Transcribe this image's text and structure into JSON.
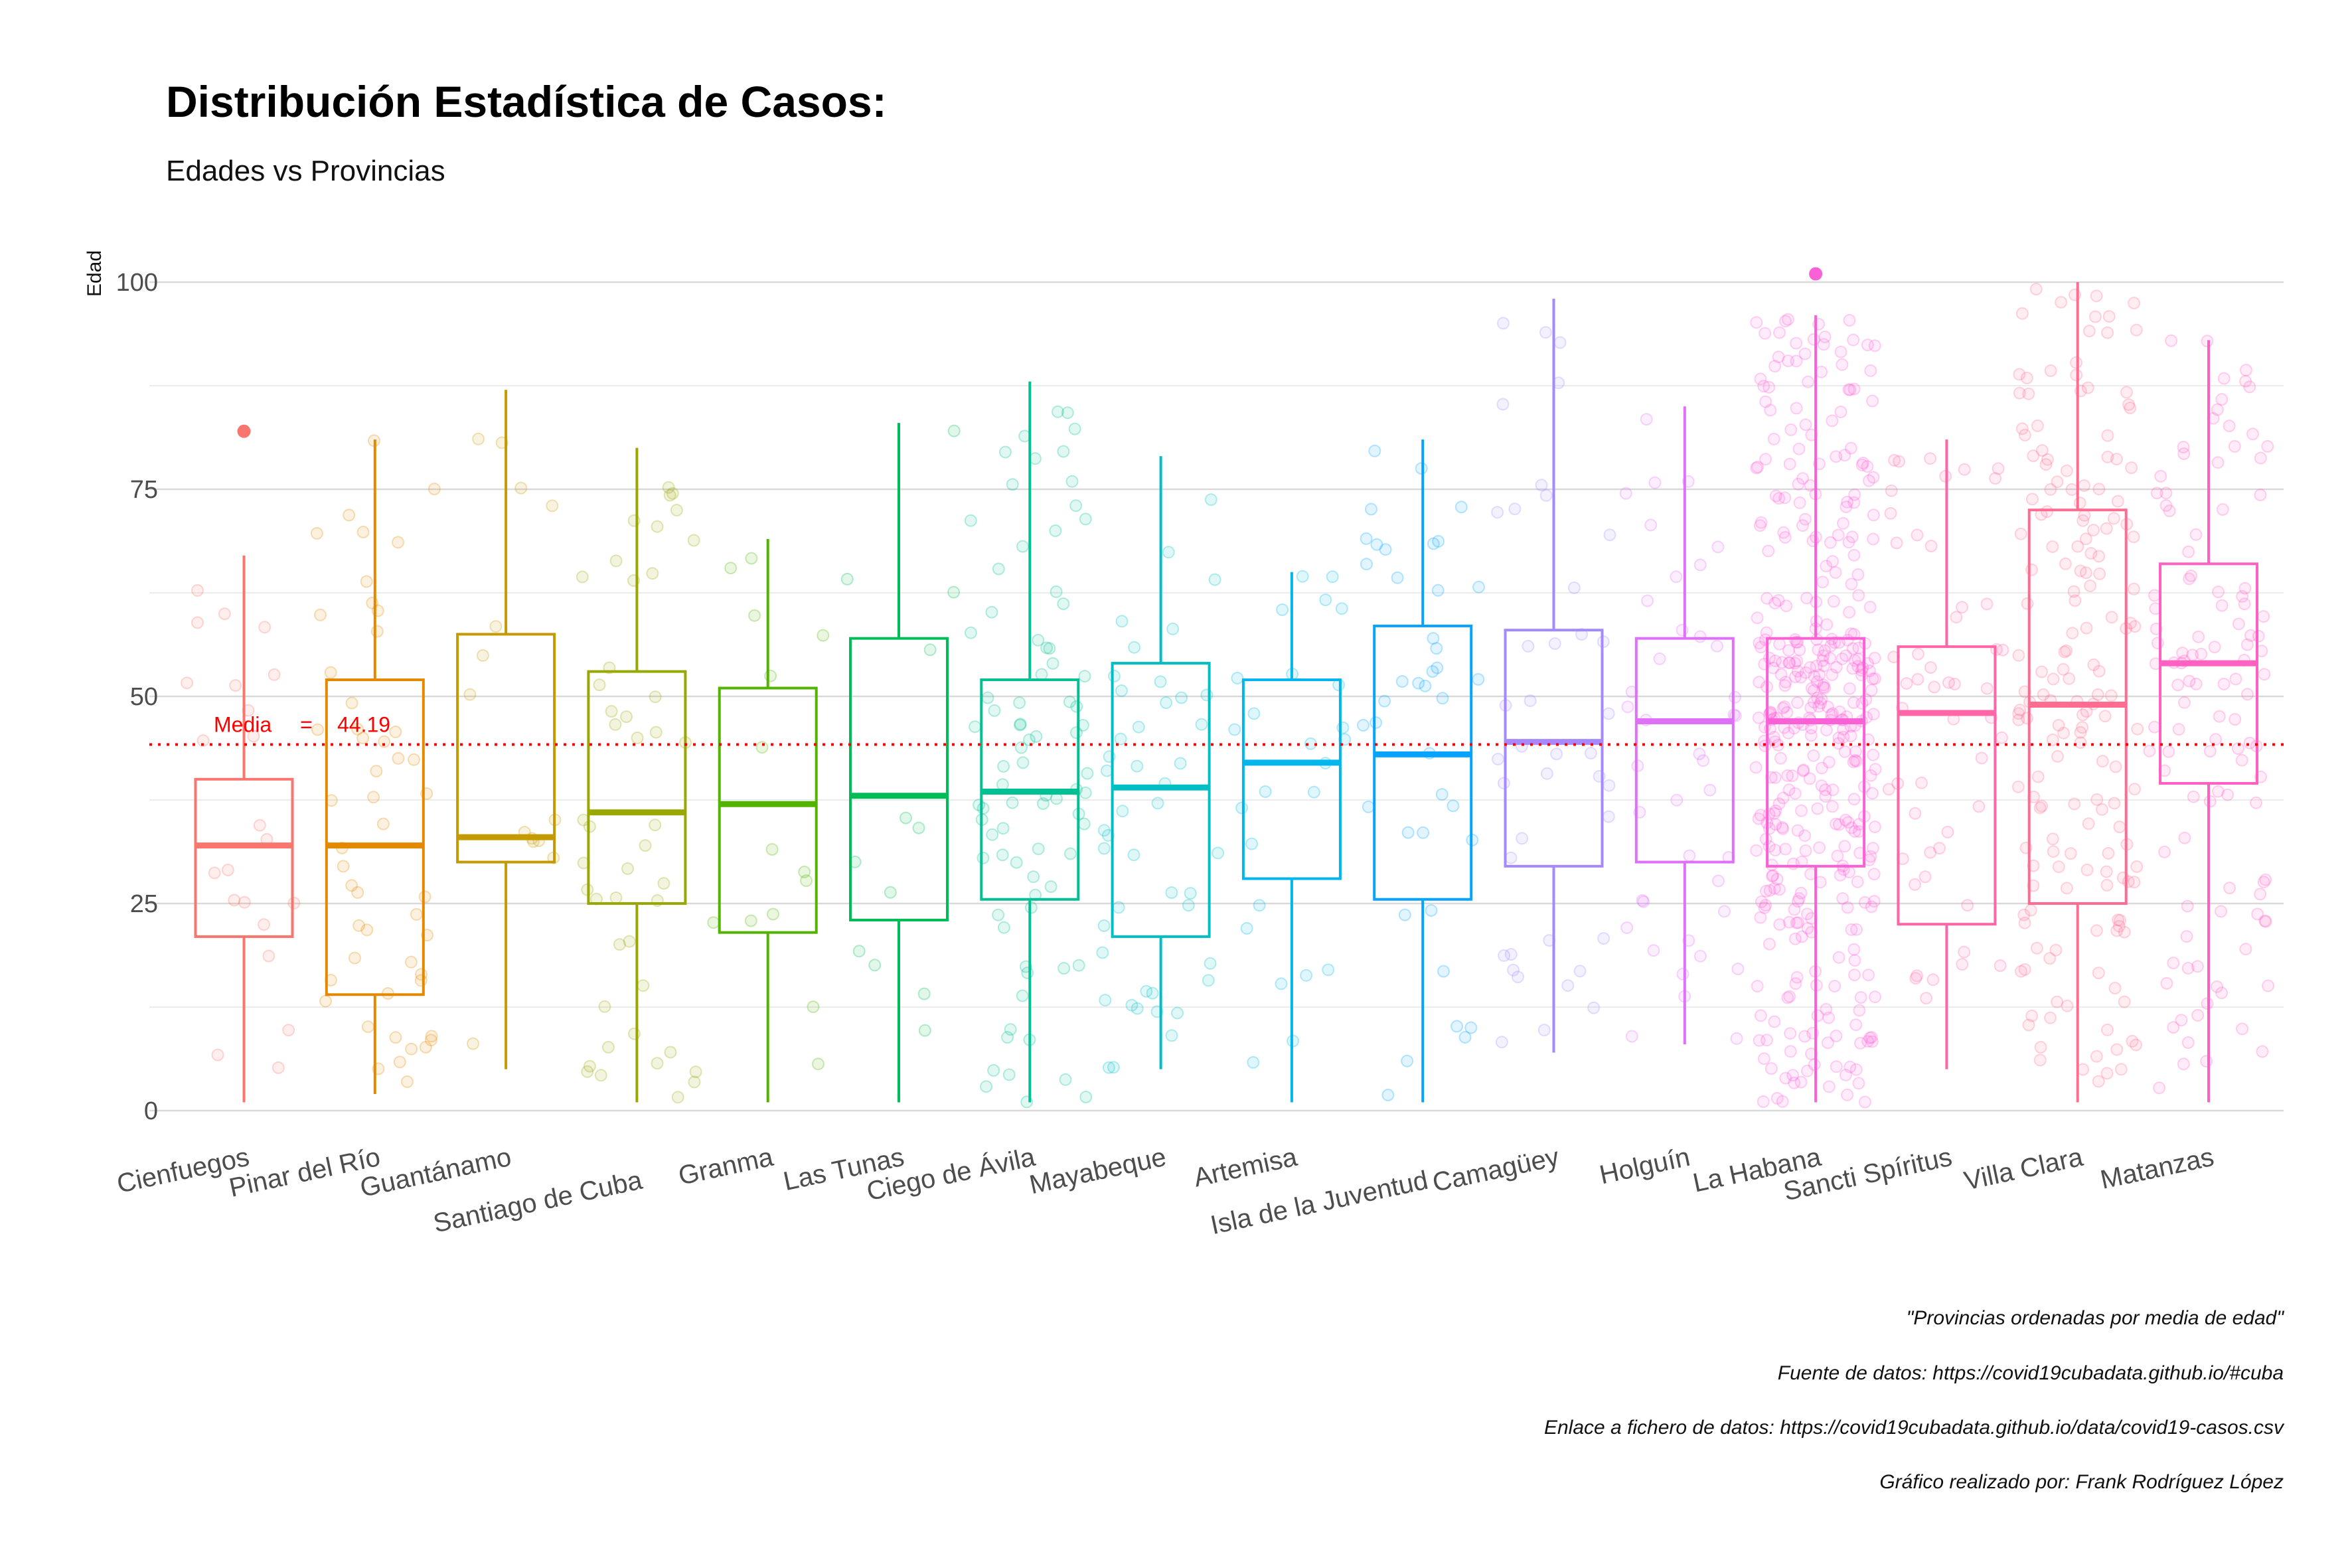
{
  "chart_data": {
    "type": "boxplot",
    "title": "Distribución Estadística de Casos:",
    "subtitle": "Edades vs Provincias",
    "ylabel": "Edad",
    "xlabel": "",
    "ylim": [
      0,
      100
    ],
    "yticks": [
      0,
      25,
      50,
      75,
      100
    ],
    "grid": true,
    "legend": "none",
    "mean_line": {
      "label": "Media",
      "equals": "=",
      "value_label": "44.19",
      "value": 44.19,
      "color": "#ff0000"
    },
    "categories": [
      {
        "name": "Cienfuegos",
        "color": "#F8766D",
        "min": 1,
        "q1": 21,
        "median": 32,
        "q3": 40,
        "max": 67,
        "outliers": [
          82
        ],
        "n": 22
      },
      {
        "name": "Pinar del Río",
        "color": "#E38900",
        "min": 2,
        "q1": 14,
        "median": 32,
        "q3": 52,
        "max": 81,
        "outliers": [],
        "n": 50
      },
      {
        "name": "Guantánamo",
        "color": "#C49A00",
        "min": 5,
        "q1": 30,
        "median": 33,
        "q3": 57.5,
        "max": 87,
        "outliers": [],
        "n": 14
      },
      {
        "name": "Santiago de Cuba",
        "color": "#99A800",
        "min": 1,
        "q1": 25,
        "median": 36,
        "q3": 53,
        "max": 80,
        "outliers": [],
        "n": 45
      },
      {
        "name": "Granma",
        "color": "#53B400",
        "min": 1,
        "q1": 21.5,
        "median": 37,
        "q3": 51,
        "max": 69,
        "outliers": [],
        "n": 14
      },
      {
        "name": "Las Tunas",
        "color": "#00BC56",
        "min": 1,
        "q1": 23,
        "median": 38,
        "q3": 57,
        "max": 83,
        "outliers": [],
        "n": 12
      },
      {
        "name": "Ciego de Ávila",
        "color": "#00C094",
        "min": 1,
        "q1": 25.5,
        "median": 38.5,
        "q3": 52,
        "max": 88,
        "outliers": [],
        "n": 80
      },
      {
        "name": "Mayabeque",
        "color": "#00BFC4",
        "min": 5,
        "q1": 21,
        "median": 39,
        "q3": 54,
        "max": 79,
        "outliers": [],
        "n": 45
      },
      {
        "name": "Artemisa",
        "color": "#00B6EB",
        "min": 1,
        "q1": 28,
        "median": 42,
        "q3": 52,
        "max": 65,
        "outliers": [],
        "n": 25
      },
      {
        "name": "Isla de la Juventud",
        "color": "#06A4FF",
        "min": 1,
        "q1": 25.5,
        "median": 43,
        "q3": 58.5,
        "max": 81,
        "outliers": [],
        "n": 40
      },
      {
        "name": "Camagüey",
        "color": "#A58AFF",
        "min": 7,
        "q1": 29.5,
        "median": 44.5,
        "q3": 58,
        "max": 98,
        "outliers": [],
        "n": 40
      },
      {
        "name": "Holguín",
        "color": "#DF70F8",
        "min": 8,
        "q1": 30,
        "median": 47,
        "q3": 57,
        "max": 85,
        "outliers": [],
        "n": 40
      },
      {
        "name": "La Habana",
        "color": "#FB61D7",
        "min": 1,
        "q1": 29.5,
        "median": 47,
        "q3": 57,
        "max": 96,
        "outliers": [
          101
        ],
        "n": 400
      },
      {
        "name": "Sancti Spíritus",
        "color": "#FF66A8",
        "min": 5,
        "q1": 22.5,
        "median": 48,
        "q3": 56,
        "max": 81,
        "outliers": [],
        "n": 50
      },
      {
        "name": "Villa Clara",
        "color": "#FF6C91",
        "min": 1,
        "q1": 25,
        "median": 49,
        "q3": 72.5,
        "max": 100,
        "outliers": [],
        "n": 170
      },
      {
        "name": "Matanzas",
        "color": "#FF61C3",
        "min": 1,
        "q1": 39.5,
        "median": 54,
        "q3": 66,
        "max": 93,
        "outliers": [],
        "n": 110
      }
    ]
  },
  "captions": [
    "\"Provincias ordenadas por media de edad\"",
    "Fuente de datos: https://covid19cubadata.github.io/#cuba",
    "Enlace a fichero de datos: https://covid19cubadata.github.io/data/covid19-casos.csv",
    "Gráfico realizado por: Frank Rodríguez López"
  ]
}
